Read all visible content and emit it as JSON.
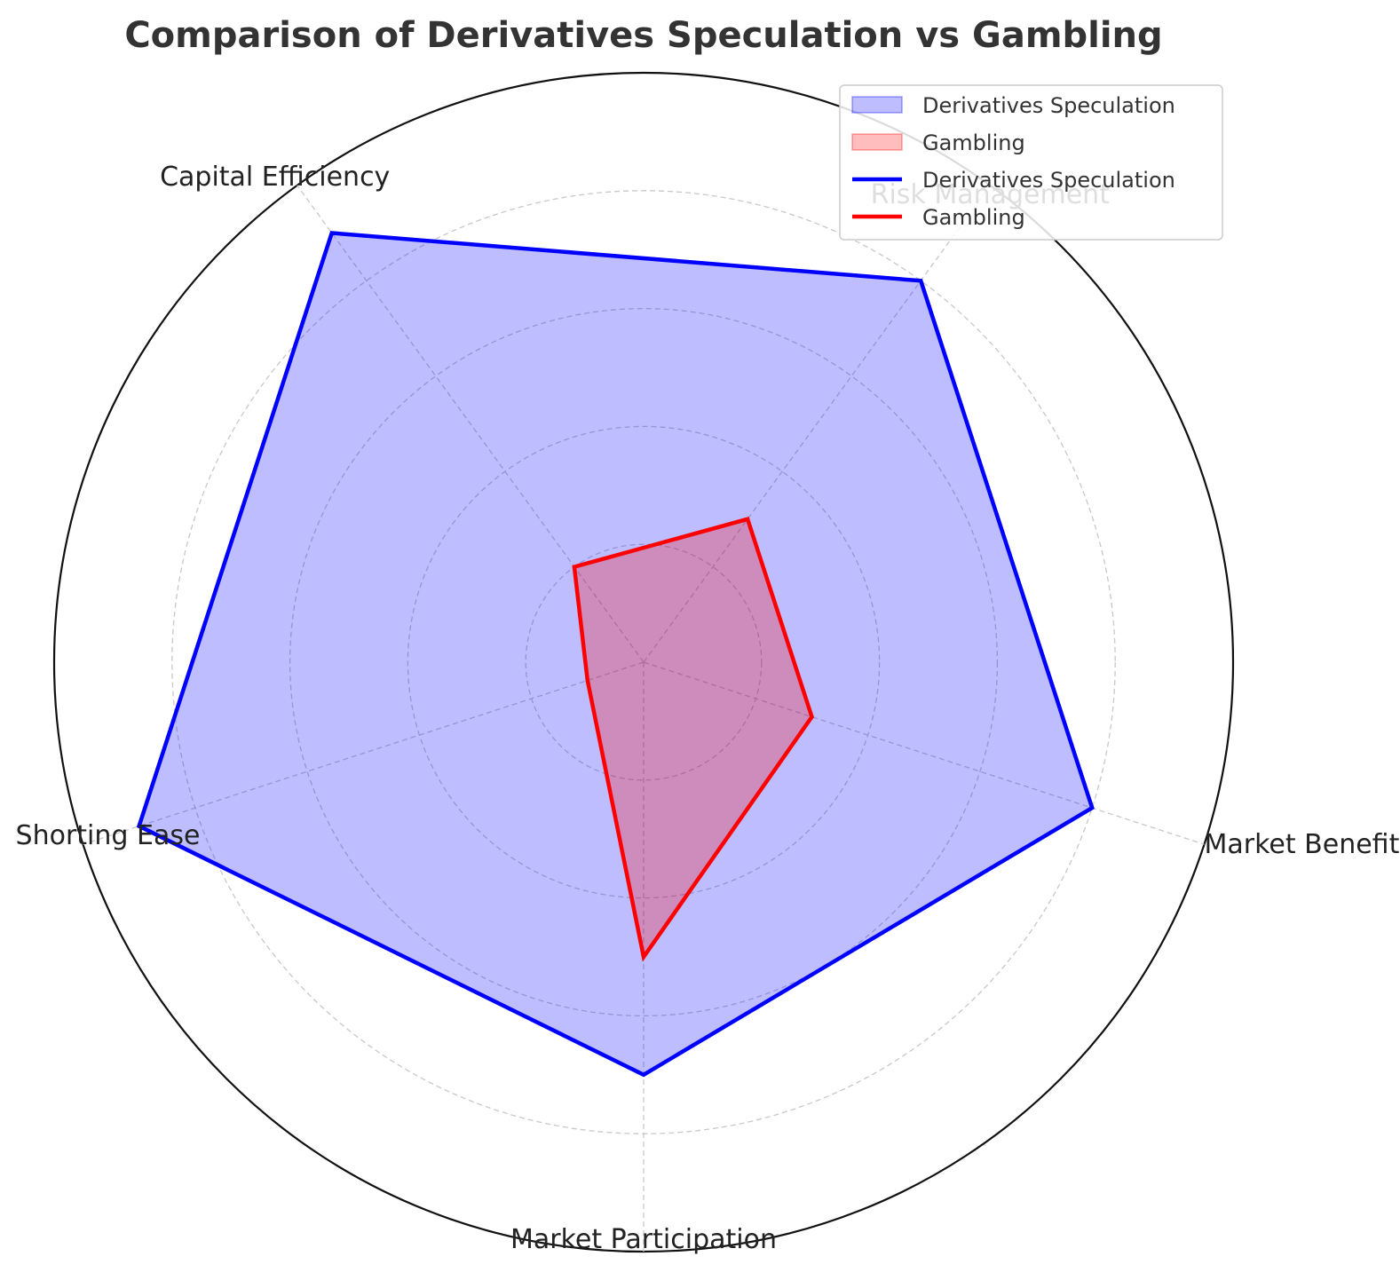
{
  "chart_data": {
    "type": "radar",
    "title": "Comparison of Derivatives Speculation vs Gambling",
    "categories": [
      "Market Benefits",
      "Risk Management",
      "Capital Efficiency",
      "Shorting Ease",
      "Market Participation"
    ],
    "rlim": [
      0,
      10
    ],
    "rticks": [
      2,
      4,
      6,
      8,
      10
    ],
    "grid": true,
    "legend_position": "top-right",
    "series": [
      {
        "name": "Derivatives Speculation",
        "values": [
          8,
          8,
          9,
          9,
          7
        ],
        "line_color": "#0000ff",
        "fill_color": "#0000ff",
        "fill_opacity": 0.26
      },
      {
        "name": "Gambling",
        "values": [
          3,
          3,
          2,
          1,
          5
        ],
        "line_color": "#ff0000",
        "fill_color": "#ff0000",
        "fill_opacity": 0.26
      }
    ],
    "legend": [
      {
        "label": "Derivatives Speculation",
        "kind": "patch",
        "color": "#0000ff"
      },
      {
        "label": "Gambling",
        "kind": "patch",
        "color": "#ff0000"
      },
      {
        "label": "Derivatives Speculation",
        "kind": "line",
        "color": "#0000ff"
      },
      {
        "label": "Gambling",
        "kind": "line",
        "color": "#ff0000"
      }
    ]
  }
}
